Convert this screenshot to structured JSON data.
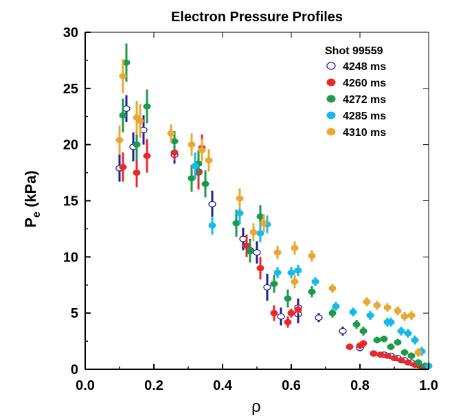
{
  "chart_data": {
    "type": "scatter",
    "title": "Electron Pressure Profiles",
    "xlabel": "ρ",
    "ylabel": {
      "main": "P",
      "sub": "e",
      "unit": " (kPa)"
    },
    "xlim": [
      0.0,
      1.0
    ],
    "ylim": [
      0,
      30
    ],
    "x_ticks": [
      "0.0",
      "0.2",
      "0.4",
      "0.6",
      "0.8",
      "1.0"
    ],
    "y_ticks": [
      "0",
      "5",
      "10",
      "15",
      "20",
      "25",
      "30"
    ],
    "grid": false,
    "legend_title": "Shot 99559",
    "legend_position": "top-right",
    "series": [
      {
        "name": "4248 ms",
        "color": "#1f1f9a",
        "marker": "open-circle",
        "points": [
          [
            0.1,
            17.9,
            1.2
          ],
          [
            0.12,
            23.2,
            1.2
          ],
          [
            0.14,
            19.8,
            1.3
          ],
          [
            0.17,
            21.3,
            1.3
          ],
          [
            0.26,
            19.1,
            0.8
          ],
          [
            0.33,
            17.6,
            1.2
          ],
          [
            0.37,
            14.7,
            1.2
          ],
          [
            0.46,
            11.6,
            1.0
          ],
          [
            0.48,
            10.6,
            1.0
          ],
          [
            0.5,
            10.4,
            1.0
          ],
          [
            0.53,
            7.3,
            1.2
          ],
          [
            0.57,
            4.7,
            0.8
          ],
          [
            0.62,
            4.9,
            0.8
          ],
          [
            0.62,
            5.5,
            0.8
          ],
          [
            0.68,
            4.6,
            0.4
          ],
          [
            0.75,
            3.4,
            0.4
          ],
          [
            0.8,
            1.9,
            0.3
          ],
          [
            0.84,
            1.4,
            0.2
          ],
          [
            0.87,
            1.3,
            0.2
          ],
          [
            0.89,
            1.2,
            0.2
          ],
          [
            0.91,
            1.0,
            0.2
          ],
          [
            0.93,
            0.8,
            0.2
          ],
          [
            0.95,
            0.6,
            0.2
          ],
          [
            0.97,
            0.4,
            0.2
          ],
          [
            0.99,
            0.2,
            0.2
          ]
        ]
      },
      {
        "name": "4260 ms",
        "color": "#e8282b",
        "marker": "filled-circle",
        "points": [
          [
            0.11,
            18.0,
            1.3
          ],
          [
            0.15,
            17.5,
            1.3
          ],
          [
            0.18,
            19.0,
            1.5
          ],
          [
            0.26,
            19.3,
            0.7
          ],
          [
            0.33,
            17.5,
            1.5
          ],
          [
            0.34,
            19.7,
            1.2
          ],
          [
            0.44,
            13.0,
            1.0
          ],
          [
            0.47,
            11.0,
            1.0
          ],
          [
            0.51,
            9.0,
            1.0
          ],
          [
            0.55,
            5.0,
            0.7
          ],
          [
            0.59,
            4.2,
            0.5
          ],
          [
            0.6,
            5.0,
            0.4
          ],
          [
            0.62,
            5.3,
            0.4
          ],
          [
            0.77,
            2.0,
            0.3
          ],
          [
            0.8,
            2.1,
            0.3
          ],
          [
            0.81,
            2.3,
            0.3
          ],
          [
            0.84,
            1.4,
            0.2
          ],
          [
            0.86,
            1.3,
            0.2
          ],
          [
            0.88,
            1.2,
            0.2
          ],
          [
            0.9,
            1.0,
            0.2
          ],
          [
            0.92,
            0.8,
            0.2
          ],
          [
            0.94,
            0.6,
            0.2
          ],
          [
            0.96,
            0.4,
            0.2
          ],
          [
            0.98,
            0.2,
            0.2
          ]
        ]
      },
      {
        "name": "4272 ms",
        "color": "#1a9a4a",
        "marker": "filled-circle",
        "points": [
          [
            0.11,
            22.6,
            1.5
          ],
          [
            0.12,
            27.3,
            1.7
          ],
          [
            0.15,
            20.0,
            1.4
          ],
          [
            0.18,
            23.4,
            1.5
          ],
          [
            0.26,
            20.3,
            0.9
          ],
          [
            0.31,
            17.0,
            1.2
          ],
          [
            0.33,
            18.3,
            1.2
          ],
          [
            0.35,
            16.5,
            1.2
          ],
          [
            0.44,
            13.0,
            1.2
          ],
          [
            0.48,
            10.5,
            1.0
          ],
          [
            0.51,
            13.6,
            1.0
          ],
          [
            0.55,
            7.6,
            0.8
          ],
          [
            0.59,
            6.3,
            0.8
          ],
          [
            0.66,
            6.9,
            0.5
          ],
          [
            0.72,
            5.0,
            0.4
          ],
          [
            0.79,
            4.0,
            0.4
          ],
          [
            0.81,
            3.4,
            0.4
          ],
          [
            0.85,
            2.6,
            0.3
          ],
          [
            0.87,
            2.7,
            0.3
          ],
          [
            0.89,
            2.0,
            0.3
          ],
          [
            0.91,
            2.4,
            0.3
          ],
          [
            0.93,
            1.5,
            0.3
          ],
          [
            0.95,
            1.2,
            0.3
          ],
          [
            0.97,
            0.6,
            0.3
          ],
          [
            0.99,
            0.3,
            0.3
          ]
        ]
      },
      {
        "name": "4285 ms",
        "color": "#17b8ea",
        "marker": "filled-circle",
        "points": [
          [
            0.32,
            18.1,
            1.2
          ],
          [
            0.37,
            12.8,
            0.8
          ],
          [
            0.45,
            13.9,
            1.0
          ],
          [
            0.51,
            12.1,
            0.8
          ],
          [
            0.53,
            12.9,
            0.8
          ],
          [
            0.56,
            8.6,
            0.5
          ],
          [
            0.6,
            8.6,
            0.5
          ],
          [
            0.62,
            8.8,
            0.5
          ],
          [
            0.67,
            7.8,
            0.4
          ],
          [
            0.73,
            5.6,
            0.4
          ],
          [
            0.78,
            5.1,
            0.4
          ],
          [
            0.83,
            4.8,
            0.4
          ],
          [
            0.88,
            4.2,
            0.4
          ],
          [
            0.89,
            4.2,
            0.4
          ],
          [
            0.92,
            3.4,
            0.4
          ],
          [
            0.94,
            3.2,
            0.4
          ],
          [
            0.96,
            2.6,
            0.4
          ],
          [
            0.98,
            1.6,
            0.4
          ],
          [
            1.0,
            0.3,
            0.3
          ]
        ]
      },
      {
        "name": "4310 ms",
        "color": "#e8a834",
        "marker": "filled-circle",
        "points": [
          [
            0.1,
            20.4,
            1.3
          ],
          [
            0.11,
            26.1,
            1.5
          ],
          [
            0.15,
            22.4,
            1.5
          ],
          [
            0.16,
            22.1,
            1.5
          ],
          [
            0.25,
            21.0,
            0.8
          ],
          [
            0.31,
            20.0,
            1.0
          ],
          [
            0.34,
            19.5,
            1.0
          ],
          [
            0.36,
            18.6,
            1.0
          ],
          [
            0.45,
            15.2,
            0.9
          ],
          [
            0.49,
            12.2,
            0.8
          ],
          [
            0.52,
            13.0,
            0.8
          ],
          [
            0.56,
            10.4,
            0.6
          ],
          [
            0.61,
            7.8,
            0.6
          ],
          [
            0.61,
            10.8,
            0.6
          ],
          [
            0.66,
            10.1,
            0.5
          ],
          [
            0.72,
            7.2,
            0.4
          ],
          [
            0.82,
            6.0,
            0.4
          ],
          [
            0.85,
            5.7,
            0.4
          ],
          [
            0.88,
            5.5,
            0.4
          ],
          [
            0.91,
            5.2,
            0.4
          ],
          [
            0.93,
            4.7,
            0.4
          ],
          [
            0.95,
            4.8,
            0.4
          ],
          [
            0.97,
            1.5,
            0.4
          ]
        ]
      }
    ]
  }
}
